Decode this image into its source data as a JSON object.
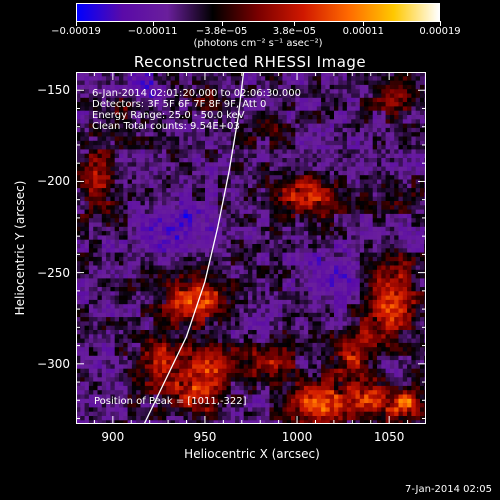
{
  "chart_data": {
    "type": "heatmap",
    "title": "Reconstructed RHESSI Image",
    "xlabel": "Heliocentric X (arcsec)",
    "ylabel": "Heliocentric Y (arcsec)",
    "xlim": [
      880,
      1070
    ],
    "ylim": [
      -333,
      -140
    ],
    "xticks": [
      900,
      950,
      1000,
      1050
    ],
    "yticks": [
      -150,
      -200,
      -250,
      -300
    ],
    "xtick_labels": [
      "900",
      "950",
      "1000",
      "1050"
    ],
    "ytick_labels": [
      "−150",
      "−200",
      "−250",
      "−300"
    ],
    "colorbar": {
      "range": [
        -0.00019,
        0.00019
      ],
      "tick_labels": [
        "−0.00019",
        "−0.00011",
        "−3.8e−05",
        "3.8e−05",
        "0.00011",
        "0.00019"
      ],
      "tick_values": [
        -0.00019,
        -0.00011,
        -3.8e-05,
        3.8e-05,
        0.00011,
        0.00019
      ],
      "unit_label": "(photons cm⁻² s⁻¹ asec⁻²)",
      "colormap": [
        "#0000ff",
        "#5a0aa8",
        "#6a1f9c",
        "#000000",
        "#7a0000",
        "#d01800",
        "#ff6a00",
        "#ffc800",
        "#ffffff"
      ]
    },
    "annotations": [
      "6-Jan-2014 02:01:20.000 to 02:06:30.000",
      "Detectors: 3F 5F 6F 7F 8F 9F, Att 0",
      "Energy Range: 25.0 - 50.0 keV",
      "Clean    Total counts: 9.54E+03"
    ],
    "peak_label": "Position of Peak = [1011,-322]",
    "peak": [
      1011,
      -322
    ],
    "limb_curve": [
      [
        917,
        -333
      ],
      [
        928,
        -310
      ],
      [
        940,
        -285
      ],
      [
        950,
        -255
      ],
      [
        957,
        -225
      ],
      [
        963,
        -195
      ],
      [
        968,
        -165
      ],
      [
        971,
        -140
      ]
    ],
    "bright_regions": [
      {
        "x": 891,
        "y": -200,
        "sx": 7,
        "sy": 12,
        "amp": 0.00011
      },
      {
        "x": 905,
        "y": -160,
        "sx": 6,
        "sy": 8,
        "amp": 7e-05
      },
      {
        "x": 950,
        "y": -155,
        "sx": 8,
        "sy": 6,
        "amp": 6e-05
      },
      {
        "x": 982,
        "y": -170,
        "sx": 7,
        "sy": 6,
        "amp": 5e-05
      },
      {
        "x": 1005,
        "y": -208,
        "sx": 14,
        "sy": 8,
        "amp": 0.00012
      },
      {
        "x": 1053,
        "y": -155,
        "sx": 8,
        "sy": 8,
        "amp": 6e-05
      },
      {
        "x": 1052,
        "y": -205,
        "sx": 7,
        "sy": 7,
        "amp": 6e-05
      },
      {
        "x": 1050,
        "y": -265,
        "sx": 10,
        "sy": 16,
        "amp": 0.00014
      },
      {
        "x": 1032,
        "y": -295,
        "sx": 9,
        "sy": 10,
        "amp": 0.00012
      },
      {
        "x": 945,
        "y": -265,
        "sx": 11,
        "sy": 8,
        "amp": 0.00016
      },
      {
        "x": 952,
        "y": -300,
        "sx": 10,
        "sy": 8,
        "amp": 0.00014
      },
      {
        "x": 925,
        "y": -300,
        "sx": 9,
        "sy": 10,
        "amp": 0.00011
      },
      {
        "x": 945,
        "y": -318,
        "sx": 10,
        "sy": 7,
        "amp": 0.00012
      },
      {
        "x": 1011,
        "y": -322,
        "sx": 10,
        "sy": 8,
        "amp": 0.00019
      },
      {
        "x": 1040,
        "y": -320,
        "sx": 8,
        "sy": 7,
        "amp": 0.00015
      },
      {
        "x": 1060,
        "y": -322,
        "sx": 7,
        "sy": 6,
        "amp": 0.00015
      },
      {
        "x": 985,
        "y": -300,
        "sx": 10,
        "sy": 8,
        "amp": 9e-05
      }
    ],
    "dark_regions": [
      {
        "x": 1045,
        "y": -300,
        "sx": 6,
        "sy": 6,
        "amp": -7e-05
      },
      {
        "x": 935,
        "y": -225,
        "sx": 14,
        "sy": 10,
        "amp": -6e-05
      },
      {
        "x": 915,
        "y": -150,
        "sx": 10,
        "sy": 8,
        "amp": -5e-05
      },
      {
        "x": 1020,
        "y": -250,
        "sx": 14,
        "sy": 12,
        "amp": -5.5e-05
      }
    ]
  },
  "footer": {
    "timestamp": "7-Jan-2014 02:05"
  }
}
